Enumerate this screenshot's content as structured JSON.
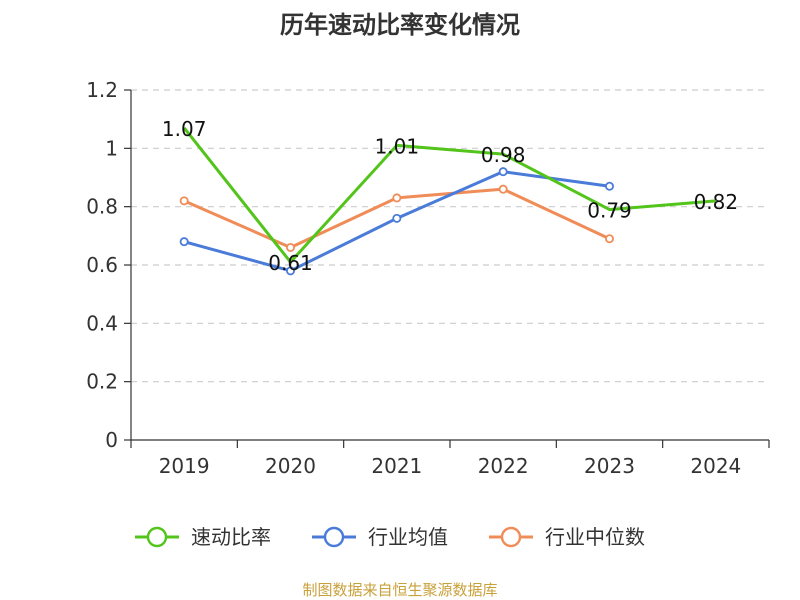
{
  "chart_data": {
    "type": "line",
    "title": "历年速动比率变化情况",
    "categories": [
      "2019",
      "2020",
      "2021",
      "2022",
      "2023",
      "2024"
    ],
    "series": [
      {
        "name": "速动比率",
        "values": [
          1.07,
          0.61,
          1.01,
          0.98,
          0.79,
          0.82
        ],
        "color": "#52c41a",
        "labels": [
          "1.07",
          "0.61",
          "1.01",
          "0.98",
          "0.79",
          "0.82"
        ]
      },
      {
        "name": "行业均值",
        "values": [
          0.68,
          0.58,
          0.76,
          0.92,
          0.87,
          null
        ],
        "color": "#4a7bd8"
      },
      {
        "name": "行业中位数",
        "values": [
          0.82,
          0.66,
          0.83,
          0.86,
          0.69,
          null
        ],
        "color": "#f08c57"
      }
    ],
    "ylim": [
      0,
      1.2
    ],
    "yticks": [
      "0",
      "0.2",
      "0.4",
      "0.6",
      "0.8",
      "1",
      "1.2"
    ],
    "grid": true,
    "legend": "bottom"
  },
  "footer": {
    "text": "制图数据来自恒生聚源数据库"
  }
}
